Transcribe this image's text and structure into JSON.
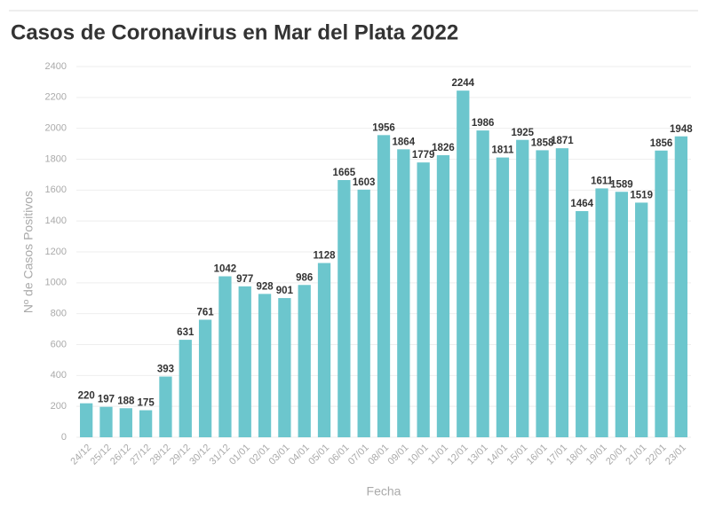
{
  "chart_data": {
    "type": "bar",
    "title": "Casos de Coronavirus en Mar del Plata 2022",
    "x_label": "Fecha",
    "y_label": "Nº de Casos Positivos",
    "categories": [
      "24/12",
      "25/12",
      "26/12",
      "27/12",
      "28/12",
      "29/12",
      "30/12",
      "31/12",
      "01/01",
      "02/01",
      "03/01",
      "04/01",
      "05/01",
      "06/01",
      "07/01",
      "08/01",
      "09/01",
      "10/01",
      "11/01",
      "12/01",
      "13/01",
      "14/01",
      "15/01",
      "16/01",
      "17/01",
      "18/01",
      "19/01",
      "20/01",
      "21/01",
      "22/01",
      "23/01"
    ],
    "values": [
      220,
      197,
      188,
      175,
      393,
      631,
      761,
      1042,
      977,
      928,
      901,
      986,
      1128,
      1665,
      1603,
      1956,
      1864,
      1779,
      1826,
      2244,
      1986,
      1811,
      1925,
      1858,
      1871,
      1464,
      1611,
      1589,
      1519,
      1856,
      1948
    ],
    "color": "#6cc6cd",
    "ylim": [
      0,
      2400
    ],
    "yticks": [
      0,
      200,
      400,
      600,
      800,
      1000,
      1200,
      1400,
      1600,
      1800,
      2000,
      2200,
      2400
    ],
    "grid": true
  }
}
